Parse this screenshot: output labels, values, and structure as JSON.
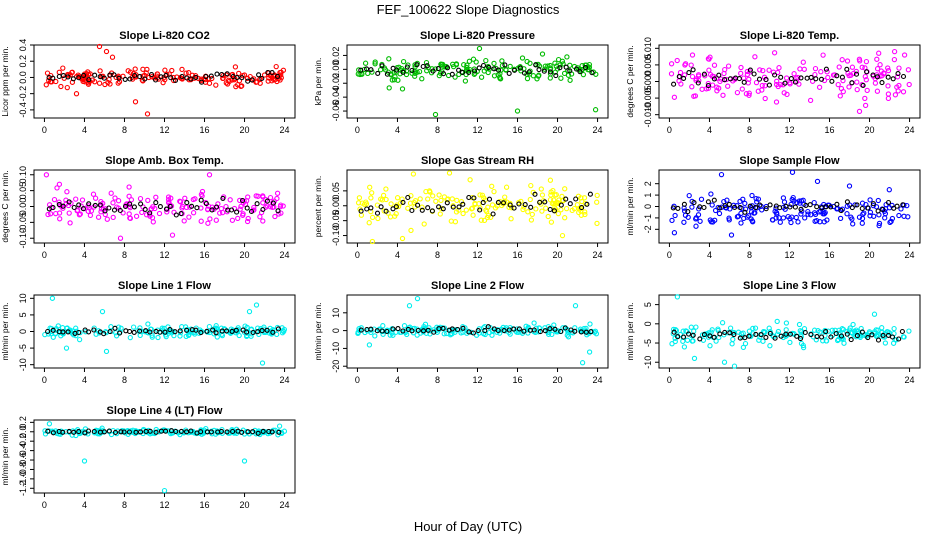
{
  "figure": {
    "title": "FEF_100622  Slope Diagnostics",
    "xlabel": "Hour of Day (UTC)"
  },
  "chart_data": [
    {
      "type": "scatter",
      "title": "Slope Li-820 CO2",
      "ylabel": "Licor ppm per min.",
      "xlim": [
        0,
        24
      ],
      "ylim": [
        -0.5,
        0.4
      ],
      "xticks": [
        0,
        4,
        8,
        12,
        16,
        20,
        24
      ],
      "yticks": [
        -0.4,
        -0.2,
        0.0,
        0.2,
        0.4
      ],
      "xtick_labels": [
        "0",
        "4",
        "8",
        "12",
        "16",
        "20",
        "24"
      ],
      "ytick_labels": [
        "-0.4",
        "-0.2",
        "0.0",
        "0.2",
        "0.4"
      ],
      "color": "#ff0000",
      "center": 0.0,
      "spread": 0.05,
      "outliers": [
        [
          5.5,
          0.4
        ],
        [
          6.2,
          0.32
        ],
        [
          10.3,
          -0.45
        ],
        [
          9.1,
          -0.3
        ],
        [
          6.8,
          0.25
        ],
        [
          3.2,
          -0.2
        ]
      ]
    },
    {
      "type": "scatter",
      "title": "Slope Li-820 Pressure",
      "ylabel": "kPa per min.",
      "xlim": [
        0,
        24
      ],
      "ylim": [
        -0.07,
        0.035
      ],
      "xticks": [
        0,
        4,
        8,
        12,
        16,
        20,
        24
      ],
      "yticks": [
        -0.06,
        -0.04,
        -0.02,
        0.0,
        0.02
      ],
      "xtick_labels": [
        "0",
        "4",
        "8",
        "12",
        "16",
        "20",
        "24"
      ],
      "ytick_labels": [
        "-0.06",
        "-0.04",
        "-0.02",
        "0.00",
        "0.02"
      ],
      "color": "#00bb00",
      "center": 0.0,
      "spread": 0.008,
      "outliers": [
        [
          7.8,
          -0.065
        ],
        [
          12.2,
          0.03
        ],
        [
          16,
          -0.06
        ],
        [
          23.8,
          -0.058
        ],
        [
          18.5,
          0.022
        ]
      ]
    },
    {
      "type": "scatter",
      "title": "Slope Li-820 Temp.",
      "ylabel": "degrees C per min.",
      "xlim": [
        0,
        24
      ],
      "ylim": [
        -0.011,
        0.011
      ],
      "xticks": [
        0,
        4,
        8,
        12,
        16,
        20,
        24
      ],
      "yticks": [
        -0.01,
        -0.005,
        0.0,
        0.005,
        0.01
      ],
      "xtick_labels": [
        "0",
        "4",
        "8",
        "12",
        "16",
        "20",
        "24"
      ],
      "ytick_labels": [
        "-0.010",
        "-0.005",
        "0.000",
        "0.005",
        "0.010"
      ],
      "color": "#ff00ff",
      "center": 0.001,
      "spread": 0.003,
      "outliers": [
        [
          2.3,
          0.008
        ],
        [
          22.5,
          0.009
        ],
        [
          19,
          -0.009
        ],
        [
          23.5,
          0.008
        ]
      ]
    },
    {
      "type": "scatter",
      "title": "Slope Amb. Box Temp.",
      "ylabel": "degrees C per min.",
      "xlim": [
        0,
        24
      ],
      "ylim": [
        -0.115,
        0.115
      ],
      "xticks": [
        0,
        4,
        8,
        12,
        16,
        20,
        24
      ],
      "yticks": [
        -0.1,
        -0.05,
        0.0,
        0.05,
        0.1
      ],
      "xtick_labels": [
        "0",
        "4",
        "8",
        "12",
        "16",
        "20",
        "24"
      ],
      "ytick_labels": [
        "-0.10",
        "-0.05",
        "0.00",
        "0.05",
        "0.10"
      ],
      "color": "#ff00ff",
      "center": 0.0,
      "spread": 0.025,
      "outliers": [
        [
          0.2,
          0.1
        ],
        [
          7.6,
          -0.1
        ],
        [
          12.8,
          -0.09
        ],
        [
          16.5,
          0.1
        ],
        [
          1.5,
          0.07
        ]
      ]
    },
    {
      "type": "scatter",
      "title": "Slope Gas Stream RH",
      "ylabel": "percent per min.",
      "xlim": [
        0,
        24
      ],
      "ylim": [
        -0.125,
        0.12
      ],
      "xticks": [
        0,
        4,
        8,
        12,
        16,
        20,
        24
      ],
      "yticks": [
        -0.1,
        -0.05,
        0.0,
        0.05
      ],
      "xtick_labels": [
        "0",
        "4",
        "8",
        "12",
        "16",
        "20",
        "24"
      ],
      "ytick_labels": [
        "-0.10",
        "-0.05",
        "0.00",
        "0.05"
      ],
      "color": "#ffff00",
      "center": 0.0,
      "spread": 0.03,
      "outliers": [
        [
          9.2,
          0.11
        ],
        [
          1.5,
          -0.12
        ],
        [
          4.5,
          -0.11
        ],
        [
          20.5,
          -0.1
        ]
      ]
    },
    {
      "type": "scatter",
      "title": "Slope Sample Flow",
      "ylabel": "ml/min per min.",
      "xlim": [
        0,
        24
      ],
      "ylim": [
        -3.2,
        3.2
      ],
      "xticks": [
        0,
        4,
        8,
        12,
        16,
        20,
        24
      ],
      "yticks": [
        -2,
        -1,
        0,
        1,
        2
      ],
      "xtick_labels": [
        "0",
        "4",
        "8",
        "12",
        "16",
        "20",
        "24"
      ],
      "ytick_labels": [
        "-2",
        "-1",
        "0",
        "1",
        "2"
      ],
      "color": "#0000ff",
      "center": 0.0,
      "spread": 0.5,
      "bimodal": 1.1,
      "outliers": [
        [
          12.3,
          3.0
        ],
        [
          5.2,
          2.8
        ],
        [
          14.8,
          2.2
        ],
        [
          18,
          1.8
        ],
        [
          6.2,
          -2.5
        ],
        [
          0.5,
          -2.3
        ]
      ]
    },
    {
      "type": "scatter",
      "title": "Slope Line 1 Flow",
      "ylabel": "ml/min per min.",
      "xlim": [
        0,
        24
      ],
      "ylim": [
        -11,
        11
      ],
      "xticks": [
        0,
        4,
        8,
        12,
        16,
        20,
        24
      ],
      "yticks": [
        -10,
        -5,
        0,
        5,
        10
      ],
      "xtick_labels": [
        "0",
        "4",
        "8",
        "12",
        "16",
        "20",
        "24"
      ],
      "ytick_labels": [
        "-10",
        "-5",
        "0",
        "5",
        "10"
      ],
      "color": "#00eeee",
      "center": 0.0,
      "spread": 0.8,
      "outliers": [
        [
          0.8,
          10
        ],
        [
          5.8,
          6
        ],
        [
          6.2,
          -6
        ],
        [
          21.8,
          -9.5
        ],
        [
          21.2,
          8
        ],
        [
          20.5,
          6
        ],
        [
          2.2,
          -5
        ]
      ]
    },
    {
      "type": "scatter",
      "title": "Slope Line 2 Flow",
      "ylabel": "ml/min per min.",
      "xlim": [
        0,
        24
      ],
      "ylim": [
        -21,
        20
      ],
      "xticks": [
        0,
        4,
        8,
        12,
        16,
        20,
        24
      ],
      "yticks": [
        -20,
        -10,
        0,
        10
      ],
      "xtick_labels": [
        "0",
        "4",
        "8",
        "12",
        "16",
        "20",
        "24"
      ],
      "ytick_labels": [
        "-20",
        "-10",
        "0",
        "10"
      ],
      "color": "#00eeee",
      "center": 0.0,
      "spread": 1.5,
      "outliers": [
        [
          6,
          18
        ],
        [
          5.2,
          14
        ],
        [
          21.8,
          14
        ],
        [
          22.5,
          -18
        ],
        [
          23.2,
          -12
        ],
        [
          1.2,
          -8
        ]
      ]
    },
    {
      "type": "scatter",
      "title": "Slope Line 3 Flow",
      "ylabel": "ml/min per min.",
      "xlim": [
        0,
        24
      ],
      "ylim": [
        -11.5,
        7.5
      ],
      "xticks": [
        0,
        4,
        8,
        12,
        16,
        20,
        24
      ],
      "yticks": [
        -10,
        -5,
        0,
        5
      ],
      "xtick_labels": [
        "0",
        "4",
        "8",
        "12",
        "16",
        "20",
        "24"
      ],
      "ytick_labels": [
        "-10",
        "-5",
        "0",
        "5"
      ],
      "color": "#00eeee",
      "center": -3.0,
      "spread": 1.2,
      "outliers": [
        [
          0.8,
          7
        ],
        [
          2.5,
          -9
        ],
        [
          5.5,
          -10
        ],
        [
          6.5,
          -11
        ],
        [
          20.5,
          2.5
        ],
        [
          1.5,
          -6
        ]
      ]
    },
    {
      "type": "scatter",
      "title": "Slope Line 4 (LT) Flow",
      "ylabel": "ml/min per min.",
      "xlim": [
        0,
        24
      ],
      "ylim": [
        -1.3,
        0.25
      ],
      "xticks": [
        0,
        4,
        8,
        12,
        16,
        20,
        24
      ],
      "yticks": [
        -1.2,
        -1.0,
        -0.8,
        -0.6,
        -0.4,
        -0.2,
        0.0,
        0.2
      ],
      "xtick_labels": [
        "0",
        "4",
        "8",
        "12",
        "16",
        "20",
        "24"
      ],
      "ytick_labels": [
        "-1.2",
        "-1.0",
        "-0.8",
        "-0.6",
        "-0.4",
        "-0.2",
        "0.0",
        "0.2"
      ],
      "color": "#00eeee",
      "center": 0.0,
      "spread": 0.03,
      "outliers": [
        [
          4,
          -0.62
        ],
        [
          20,
          -0.62
        ],
        [
          12,
          -1.25
        ],
        [
          0.5,
          0.17
        ],
        [
          23.5,
          0.12
        ]
      ]
    }
  ]
}
